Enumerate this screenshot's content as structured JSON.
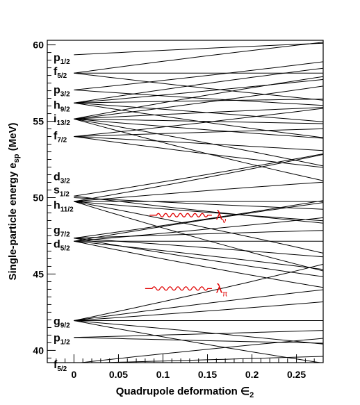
{
  "chart_data": {
    "type": "line",
    "xlabel": "Quadrupole deformation",
    "xlabel_symbol": "∈",
    "xlabel_sub": "2",
    "ylabel": "Single-particle energy e",
    "ylabel_sub": "sp",
    "ylabel_unit": "(MeV)",
    "xlim": [
      -0.03,
      0.28
    ],
    "ylim": [
      39.2,
      60.3
    ],
    "xticks": [
      {
        "value": 0,
        "label": "0"
      },
      {
        "value": 0.05,
        "label": "0.05"
      },
      {
        "value": 0.1,
        "label": "0.1"
      },
      {
        "value": 0.15,
        "label": "0.15"
      },
      {
        "value": 0.2,
        "label": "0.2"
      },
      {
        "value": 0.25,
        "label": "0.25"
      }
    ],
    "yticks": [
      {
        "value": 40,
        "label": "40"
      },
      {
        "value": 45,
        "label": "45"
      },
      {
        "value": 50,
        "label": "50"
      },
      {
        "value": 55,
        "label": "55"
      },
      {
        "value": 60,
        "label": "60"
      }
    ],
    "grid": false,
    "line_color": "#000000",
    "annotation_color": "#e00000",
    "spherical_levels": [
      {
        "name": "f",
        "sub": "5/2",
        "e0": 39.15,
        "slopes": [
          -4,
          1.5,
          6.5
        ]
      },
      {
        "name": "p",
        "sub": "1/2",
        "e0": 40.85,
        "slopes": [
          -1.5,
          1.5
        ]
      },
      {
        "name": "g",
        "sub": "9/2",
        "e0": 41.95,
        "slopes": [
          -11,
          -5,
          0,
          4,
          8,
          12
        ]
      },
      {
        "name": "d",
        "sub": "5/2",
        "e0": 47.15,
        "slopes": [
          -12,
          -6,
          0,
          5,
          10
        ]
      },
      {
        "name": "g",
        "sub": "7/2",
        "e0": 47.35,
        "slopes": [
          -10,
          -4,
          2,
          8
        ]
      },
      {
        "name": "h",
        "sub": "11/2",
        "e0": 49.75,
        "slopes": [
          -18,
          -11,
          -5,
          0,
          5,
          10
        ]
      },
      {
        "name": "s",
        "sub": "1/2",
        "e0": 50.0,
        "slopes": [
          -3
        ]
      },
      {
        "name": "d",
        "sub": "3/2",
        "e0": 50.1,
        "slopes": [
          -7,
          9
        ]
      },
      {
        "name": "f",
        "sub": "7/2",
        "e0": 54.0,
        "slopes": [
          -8,
          -3,
          2,
          6
        ]
      },
      {
        "name": "i",
        "sub": "13/2",
        "e0": 55.15,
        "slopes": [
          -16,
          -10,
          -5,
          -1,
          3,
          7,
          11
        ]
      },
      {
        "name": "h",
        "sub": "9/2",
        "e0": 56.2,
        "slopes": [
          -9,
          -4,
          1,
          5,
          9
        ]
      },
      {
        "name": "p",
        "sub": "3/2",
        "e0": 57.05,
        "slopes": [
          -4,
          6
        ]
      },
      {
        "name": "f",
        "sub": "5/2",
        "e0": 58.15,
        "slopes": [
          -7,
          0,
          8
        ]
      },
      {
        "name": "p",
        "sub": "1/2",
        "e0": 59.35,
        "slopes": [
          3
        ]
      }
    ],
    "annotations": [
      {
        "symbol": "λ",
        "sub": "ν",
        "energy": 48.85,
        "x_start": 0.085,
        "x_end": 0.155
      },
      {
        "symbol": "λ",
        "sub": "π",
        "energy": 44.05,
        "x_start": 0.08,
        "x_end": 0.155
      }
    ]
  }
}
